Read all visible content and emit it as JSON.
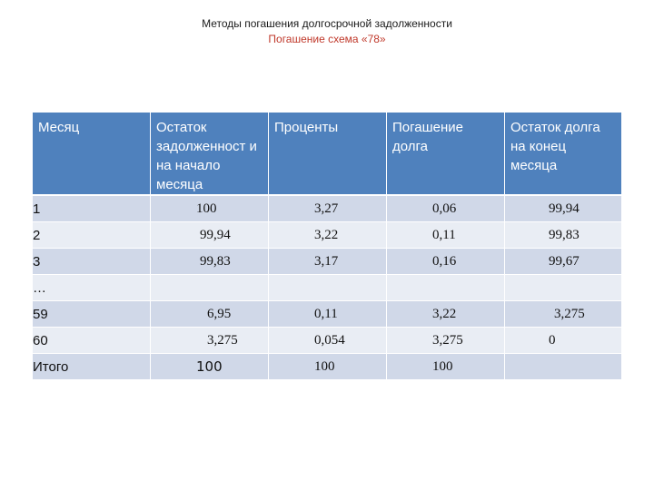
{
  "slide": {
    "title": "Методы погашения долгосрочной задолженности",
    "subtitle": "Погашение схема «78»"
  },
  "table": {
    "headers": [
      "Месяц",
      "Остаток задолженност и на начало месяца",
      "Проценты",
      "Погашение долга",
      "Остаток долга на конец месяца"
    ],
    "rows": [
      [
        "1",
        "100",
        "3,27",
        "0,06",
        "99,94"
      ],
      [
        "2",
        "99,94",
        "3,22",
        "0,11",
        "99,83"
      ],
      [
        "3",
        "99,83",
        "3,17",
        "0,16",
        "99,67"
      ],
      [
        "…",
        "",
        "",
        "",
        ""
      ],
      [
        "59",
        "6,95",
        "0,11",
        "3,22",
        "3,275"
      ],
      [
        "60",
        "3,275",
        "0,054",
        "3,275",
        "0"
      ],
      [
        "Итого",
        "100",
        "100",
        "100",
        ""
      ]
    ]
  },
  "colors": {
    "header_bg": "#4f81bd",
    "row_odd_bg": "#d0d8e8",
    "row_even_bg": "#e9edf4",
    "subtitle_color": "#c0392b"
  }
}
